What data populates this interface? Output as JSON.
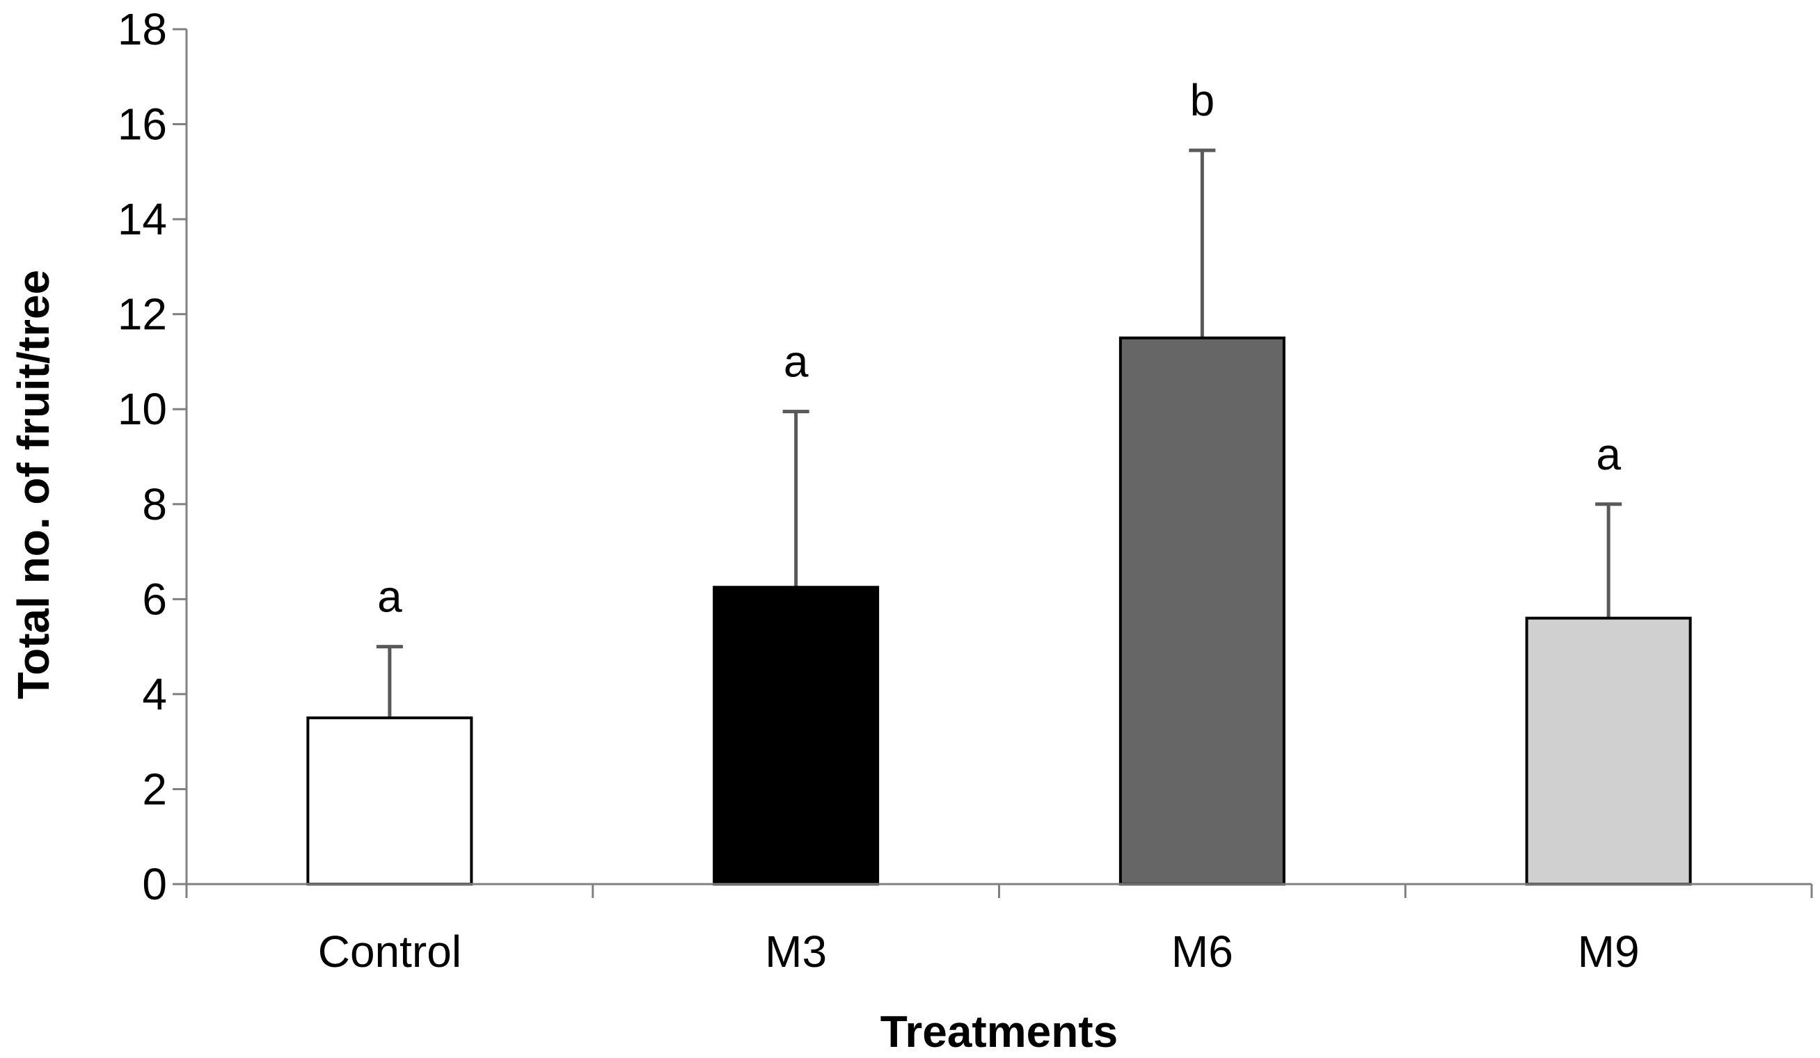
{
  "chart_data": {
    "type": "bar",
    "title": "",
    "xlabel": "Treatments",
    "ylabel": "Total no. of fruit/tree",
    "ylim": [
      0,
      18
    ],
    "yticks": [
      0,
      2,
      4,
      6,
      8,
      10,
      12,
      14,
      16,
      18
    ],
    "categories": [
      "Control",
      "M3",
      "M6",
      "M9"
    ],
    "values": [
      3.5,
      6.25,
      11.5,
      5.6
    ],
    "errors": [
      1.5,
      3.7,
      3.95,
      2.4
    ],
    "significance": [
      "a",
      "a",
      "b",
      "a"
    ],
    "bar_colors": [
      "#ffffff",
      "#000000",
      "#666666",
      "#d0d0d0"
    ],
    "bar_edge_color": "#000000",
    "error_bar_color": "#595959",
    "axis_color": "#808080",
    "grid": false,
    "legend": "none"
  }
}
